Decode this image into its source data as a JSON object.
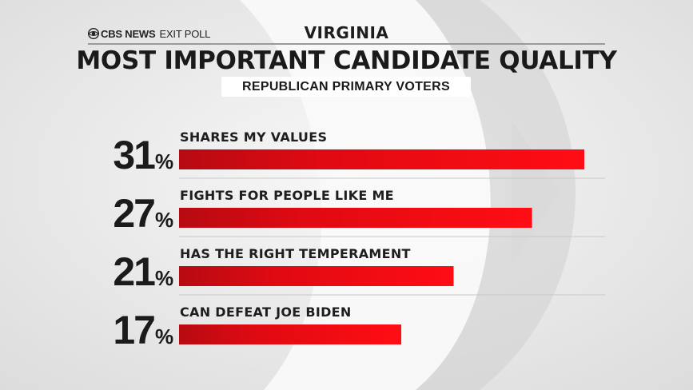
{
  "header": {
    "brand": "CBS NEWS",
    "brand_suffix": "EXIT POLL",
    "region": "VIRGINIA",
    "title": "MOST IMPORTANT CANDIDATE QUALITY",
    "subtitle": "REPUBLICAN PRIMARY VOTERS"
  },
  "colors": {
    "bar_dark": "#b70a12",
    "bar_light": "#ff0d14",
    "background": "#ececec"
  },
  "chart_data": {
    "type": "bar",
    "orientation": "horizontal",
    "categories": [
      "SHARES MY VALUES",
      "FIGHTS FOR PEOPLE LIKE ME",
      "HAS THE RIGHT TEMPERAMENT",
      "CAN DEFEAT JOE BIDEN"
    ],
    "values": [
      31,
      27,
      21,
      17
    ],
    "unit": "%",
    "xlim": [
      0,
      31
    ],
    "grid": false,
    "legend": "none"
  }
}
